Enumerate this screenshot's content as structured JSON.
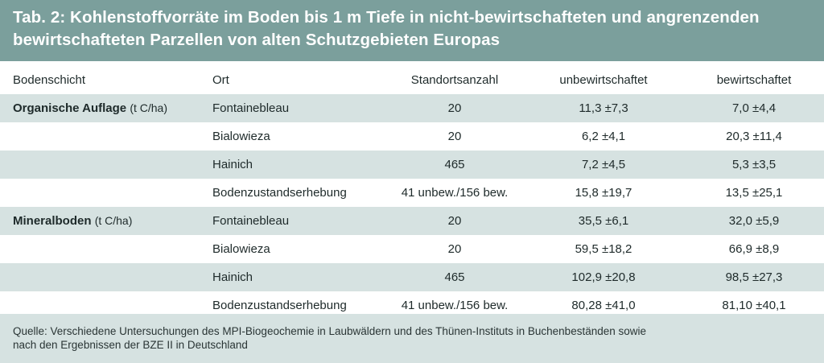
{
  "title": {
    "line1": "Tab. 2: Kohlenstoffvorräte im Boden bis 1 m Tiefe in nicht-bewirtschafteten und angrenzenden",
    "line2": "bewirtschafteten Parzellen von alten Schutzgebieten Europas"
  },
  "columns": [
    "Bodenschicht",
    "Ort",
    "Standortsanzahl",
    "unbewirtschaftet",
    "bewirtschaftet"
  ],
  "groups": [
    {
      "label": "Organische Auflage",
      "unit": "(t C/ha)",
      "rows": [
        {
          "ort": "Fontainebleau",
          "anzahl": "20",
          "unbew": "11,3 ±7,3",
          "bew": "7,0 ±4,4"
        },
        {
          "ort": "Bialowieza",
          "anzahl": "20",
          "unbew": "6,2 ±4,1",
          "bew": "20,3 ±11,4"
        },
        {
          "ort": "Hainich",
          "anzahl": "465",
          "unbew": "7,2 ±4,5",
          "bew": "5,3 ±3,5"
        },
        {
          "ort": "Bodenzustandserhebung",
          "anzahl": "41 unbew./156 bew.",
          "unbew": "15,8 ±19,7",
          "bew": "13,5 ±25,1"
        }
      ]
    },
    {
      "label": "Mineralboden",
      "unit": "(t C/ha)",
      "rows": [
        {
          "ort": "Fontainebleau",
          "anzahl": "20",
          "unbew": "35,5 ±6,1",
          "bew": "32,0 ±5,9"
        },
        {
          "ort": "Bialowieza",
          "anzahl": "20",
          "unbew": "59,5 ±18,2",
          "bew": "66,9 ±8,9"
        },
        {
          "ort": "Hainich",
          "anzahl": "465",
          "unbew": "102,9 ±20,8",
          "bew": "98,5 ±27,3"
        },
        {
          "ort": "Bodenzustandserhebung",
          "anzahl": "41 unbew./156 bew.",
          "unbew": "80,28 ±41,0",
          "bew": "81,10 ±40,1"
        }
      ]
    }
  ],
  "source": {
    "line1": "Quelle: Verschiedene Untersuchungen des MPI-Biogeochemie in Laubwäldern und des Thünen-Instituts in Buchenbeständen sowie",
    "line2": "nach den Ergebnissen der BZE II in Deutschland"
  },
  "colors": {
    "header_bg": "#7b9f9c",
    "band_bg": "#d6e2e1"
  }
}
